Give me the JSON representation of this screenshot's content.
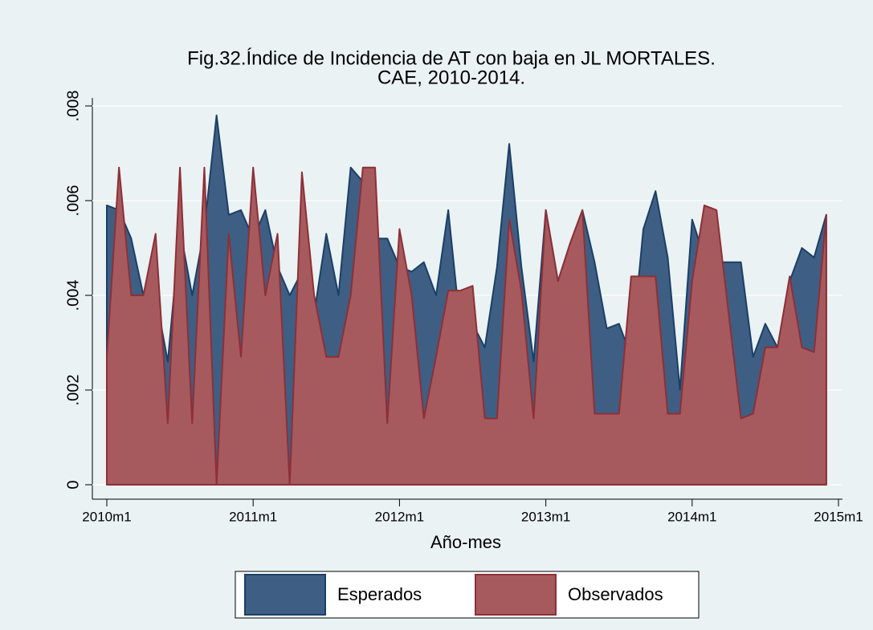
{
  "chart_data": {
    "type": "area",
    "title": [
      "Fig.32.Índice de Incidencia de AT con baja en JL MORTALES.",
      "CAE, 2010-2014."
    ],
    "x_label": "Año-mes",
    "x": [
      600,
      601,
      602,
      603,
      604,
      605,
      606,
      607,
      608,
      609,
      610,
      611,
      612,
      613,
      614,
      615,
      616,
      617,
      618,
      619,
      620,
      621,
      622,
      623,
      624,
      625,
      626,
      627,
      628,
      629,
      630,
      631,
      632,
      633,
      634,
      635,
      636,
      637,
      638,
      639,
      640,
      641,
      642,
      643,
      644,
      645,
      646,
      647,
      648,
      649,
      650,
      651,
      652,
      653,
      654,
      655,
      656,
      657,
      658,
      659
    ],
    "xlim": [
      600,
      660
    ],
    "xticks": [
      {
        "value": 600,
        "label": "2010m1"
      },
      {
        "value": 612,
        "label": "2011m1"
      },
      {
        "value": 624,
        "label": "2012m1"
      },
      {
        "value": 636,
        "label": "2013m1"
      },
      {
        "value": 648,
        "label": "2014m1"
      },
      {
        "value": 660,
        "label": "2015m1"
      }
    ],
    "ylim": [
      0,
      0.008
    ],
    "yticks": [
      0,
      {
        "value": 0.002,
        "label": ".002"
      },
      {
        "value": 0.004,
        "label": ".004"
      },
      {
        "value": 0.006,
        "label": ".006"
      },
      {
        "value": 0.008,
        "label": ".008"
      }
    ],
    "grid": true,
    "legend": "bottom",
    "series": [
      {
        "name": "Esperados",
        "color": "#3e5f83",
        "values": [
          0.0059,
          0.0058,
          0.0052,
          0.004,
          0.004,
          0.0026,
          0.0054,
          0.004,
          0.0054,
          0.0078,
          0.0057,
          0.0058,
          0.0052,
          0.0058,
          0.0046,
          0.004,
          0.0045,
          0.0036,
          0.0053,
          0.004,
          0.0067,
          0.0064,
          0.0052,
          0.0052,
          0.0046,
          0.0045,
          0.0047,
          0.004,
          0.0058,
          0.0033,
          0.0034,
          0.0029,
          0.0046,
          0.0072,
          0.0046,
          0.0026,
          0.0058,
          0.0043,
          0.0051,
          0.0058,
          0.0047,
          0.0033,
          0.0034,
          0.0027,
          0.0054,
          0.0062,
          0.0048,
          0.002,
          0.0056,
          0.0048,
          0.0047,
          0.0047,
          0.0047,
          0.0027,
          0.0034,
          0.0029,
          0.0043,
          0.005,
          0.0048,
          0.0057
        ]
      },
      {
        "name": "Observados",
        "color": "#a65a5e",
        "values": [
          0.0027,
          0.0067,
          0.004,
          0.004,
          0.0053,
          0.0013,
          0.0067,
          0.0013,
          0.0067,
          0,
          0.0053,
          0.0027,
          0.0067,
          0.004,
          0.0053,
          0,
          0.0066,
          0.004,
          0.0027,
          0.0027,
          0.004,
          0.0067,
          0.0067,
          0.0013,
          0.0054,
          0.004,
          0.0014,
          0.0027,
          0.0041,
          0.0041,
          0.0042,
          0.0014,
          0.0014,
          0.0056,
          0.0041,
          0.0014,
          0.0058,
          0.0043,
          0.0051,
          0.0058,
          0.0015,
          0.0015,
          0.0015,
          0.0044,
          0.0044,
          0.0044,
          0.0015,
          0.0015,
          0.0043,
          0.0059,
          0.0058,
          0.0036,
          0.0014,
          0.0015,
          0.0029,
          0.0029,
          0.0044,
          0.0029,
          0.0028,
          0.0057
        ]
      }
    ]
  }
}
